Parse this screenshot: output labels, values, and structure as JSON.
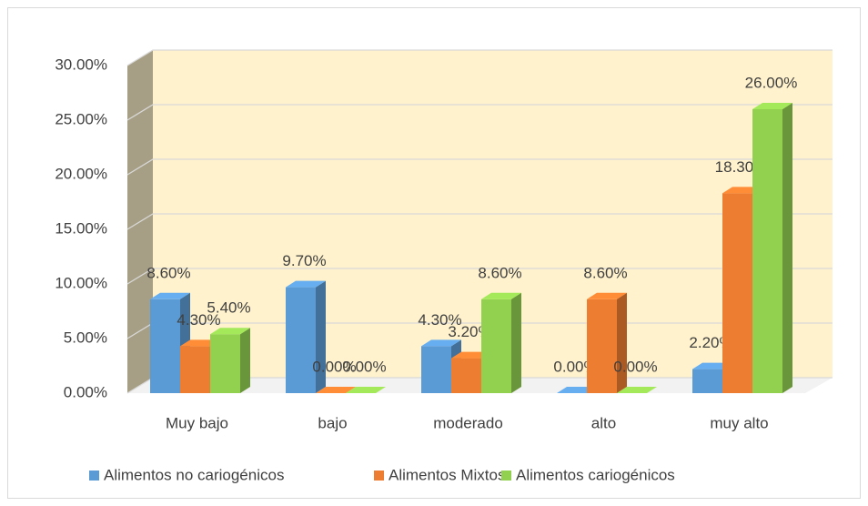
{
  "chart_data": {
    "type": "bar3d",
    "categories": [
      "Muy bajo",
      "bajo",
      "moderado",
      "alto",
      "muy alto"
    ],
    "series": [
      {
        "name": "Alimentos no cariogénicos",
        "color": "#5b9bd5",
        "values": [
          8.6,
          9.7,
          4.3,
          0,
          2.2
        ],
        "value_labels": [
          "8.60%",
          "9.70%",
          "4.30%",
          "0.00%",
          "2.20%"
        ]
      },
      {
        "name": "Alimentos Mixtos",
        "color": "#ed7d31",
        "values": [
          4.3,
          0,
          3.2,
          8.6,
          18.3
        ],
        "value_labels": [
          "4.30%",
          "0.00%",
          "3.20%",
          "8.60%",
          "18.30%"
        ]
      },
      {
        "name": "Alimentos cariogénicos",
        "color": "#92d050",
        "values": [
          5.4,
          0,
          8.6,
          0,
          26.0
        ],
        "value_labels": [
          "5.40%",
          "0.00%",
          "8.60%",
          "0.00%",
          "26.00%"
        ]
      }
    ],
    "ylim": [
      0,
      30
    ],
    "yticks": [
      {
        "value": 0,
        "label": "0.00%"
      },
      {
        "value": 5,
        "label": "5.00%"
      },
      {
        "value": 10,
        "label": "10.00%"
      },
      {
        "value": 15,
        "label": "15.00%"
      },
      {
        "value": 20,
        "label": "20.00%"
      },
      {
        "value": 25,
        "label": "25.00%"
      },
      {
        "value": 30,
        "label": "30.00%"
      }
    ],
    "grid": true,
    "legend": "bottom"
  }
}
